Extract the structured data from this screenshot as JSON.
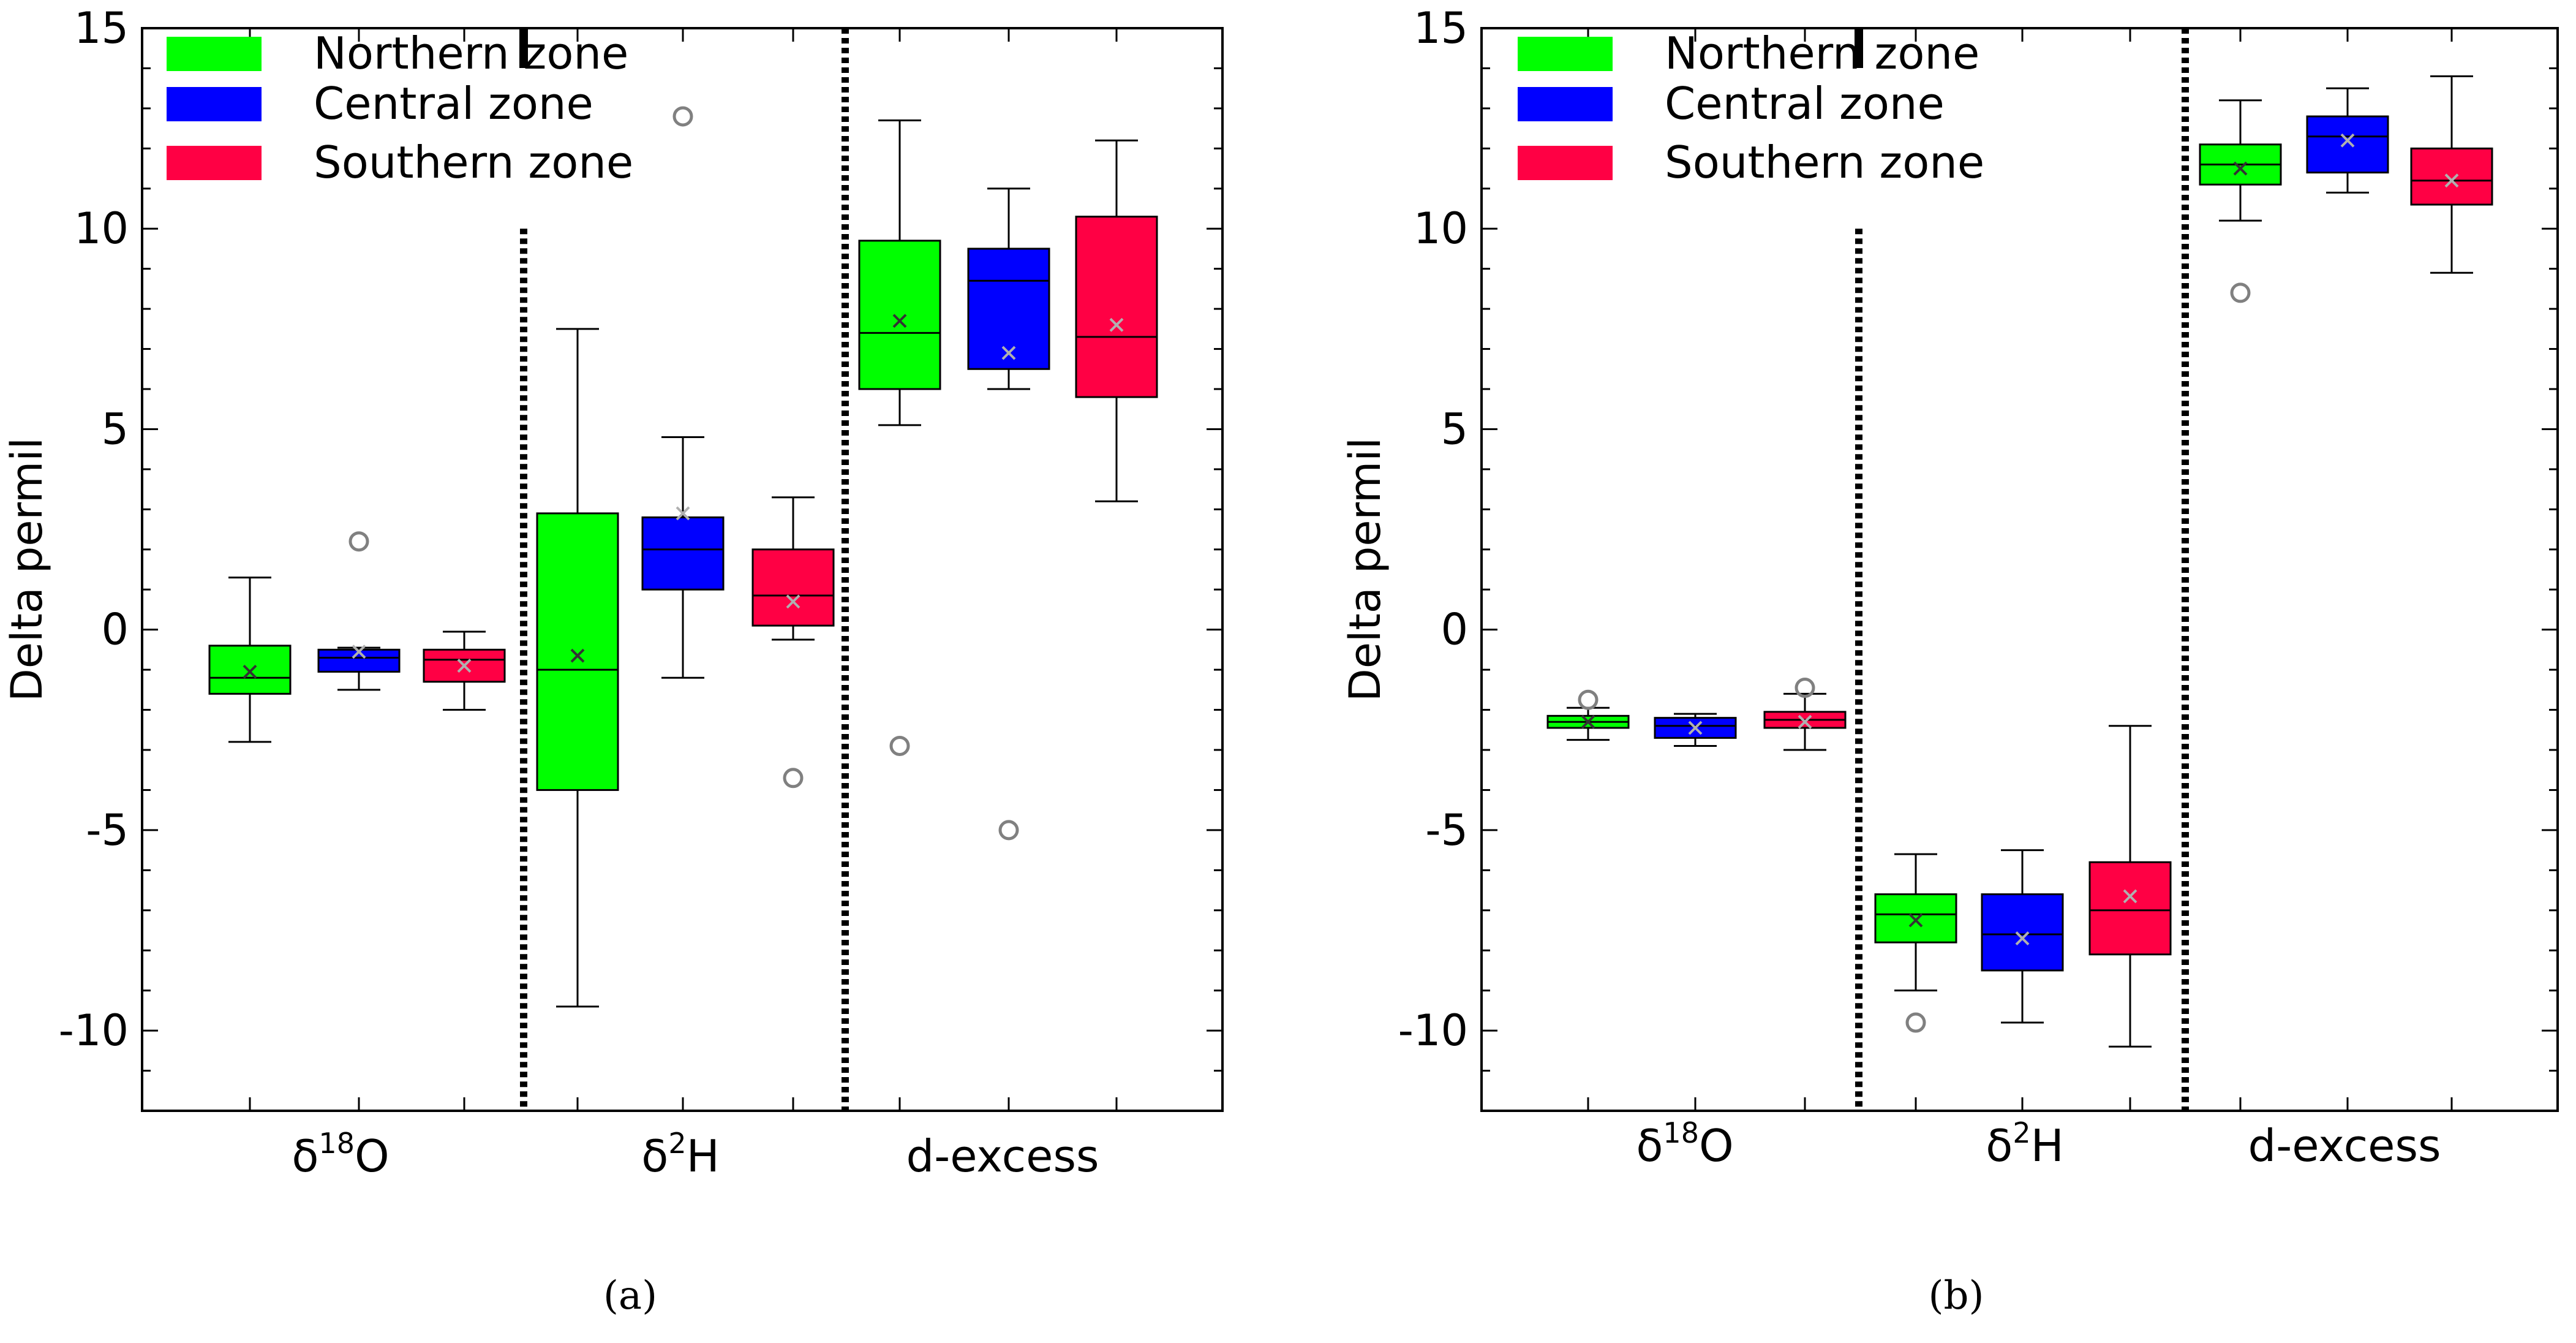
{
  "colors": {
    "northern": "#00ff00",
    "central": "#0000ff",
    "southern": "#ff0044",
    "outlier": "#808080",
    "mean_marker": "#808080"
  },
  "chart_data": [
    {
      "type": "box",
      "panel_label": "(a)",
      "ylabel": "Delta permil",
      "ylim": [
        -12,
        15
      ],
      "yticks": [
        "15",
        "10",
        "5",
        "0",
        "-5",
        "-10"
      ],
      "ytick_values": [
        15,
        10,
        5,
        0,
        -5,
        -10
      ],
      "groups": [
        "δ18O",
        "δ2H",
        "d-excess"
      ],
      "group_labels": [
        {
          "base": "δ",
          "sup": "18",
          "tail": "O"
        },
        {
          "base": "δ",
          "sup": "2",
          "tail": "H"
        },
        {
          "base": "d-excess",
          "sup": "",
          "tail": ""
        }
      ],
      "legend": {
        "position": "top-left",
        "entries": [
          "Northern zone",
          "Central zone",
          "Southern zone"
        ]
      },
      "series": [
        {
          "name": "Northern zone",
          "boxes": [
            {
              "whislo": -2.8,
              "q1": -1.6,
              "med": -1.2,
              "q3": -0.4,
              "whishi": 1.3,
              "mean": -1.05,
              "fliers": []
            },
            {
              "whislo": -9.4,
              "q1": -4.0,
              "med": -1.0,
              "q3": 2.9,
              "whishi": 7.5,
              "mean": -0.65,
              "fliers": []
            },
            {
              "whislo": 5.1,
              "q1": 6.0,
              "med": 7.4,
              "q3": 9.7,
              "whishi": 12.7,
              "mean": 7.7,
              "fliers": [
                -2.9
              ]
            }
          ]
        },
        {
          "name": "Central zone",
          "boxes": [
            {
              "whislo": -1.5,
              "q1": -1.05,
              "med": -0.7,
              "q3": -0.5,
              "whishi": -0.45,
              "mean": -0.55,
              "fliers": [
                2.2
              ]
            },
            {
              "whislo": -1.2,
              "q1": 1.0,
              "med": 2.0,
              "q3": 2.8,
              "whishi": 4.8,
              "mean": 2.9,
              "fliers": [
                12.8
              ]
            },
            {
              "whislo": 6.0,
              "q1": 6.5,
              "med": 8.7,
              "q3": 9.5,
              "whishi": 11.0,
              "mean": 6.9,
              "fliers": [
                -5.0
              ]
            }
          ]
        },
        {
          "name": "Southern zone",
          "boxes": [
            {
              "whislo": -2.0,
              "q1": -1.3,
              "med": -0.75,
              "q3": -0.5,
              "whishi": -0.05,
              "mean": -0.9,
              "fliers": []
            },
            {
              "whislo": -0.25,
              "q1": 0.1,
              "med": 0.85,
              "q3": 2.0,
              "whishi": 3.3,
              "mean": 0.7,
              "fliers": [
                -3.7
              ]
            },
            {
              "whislo": 3.2,
              "q1": 5.8,
              "med": 7.3,
              "q3": 10.3,
              "whishi": 12.2,
              "mean": 7.6,
              "fliers": []
            }
          ]
        }
      ]
    },
    {
      "type": "box",
      "panel_label": "(b)",
      "ylabel": "Delta permil",
      "ylim": [
        -12,
        15
      ],
      "yticks": [
        "15",
        "10",
        "5",
        "0",
        "-5",
        "-10"
      ],
      "ytick_values": [
        15,
        10,
        5,
        0,
        -5,
        -10
      ],
      "groups": [
        "δ18O",
        "δ2H",
        "d-excess"
      ],
      "group_labels": [
        {
          "base": "δ",
          "sup": "18",
          "tail": "O"
        },
        {
          "base": "δ",
          "sup": "2",
          "tail": "H"
        },
        {
          "base": "d-excess",
          "sup": "",
          "tail": ""
        }
      ],
      "legend": {
        "position": "top-left",
        "entries": [
          "Northern zone",
          "Central zone",
          "Southern zone"
        ]
      },
      "series": [
        {
          "name": "Northern zone",
          "boxes": [
            {
              "whislo": -2.75,
              "q1": -2.45,
              "med": -2.3,
              "q3": -2.15,
              "whishi": -1.95,
              "mean": -2.3,
              "fliers": [
                -1.75
              ]
            },
            {
              "whislo": -9.0,
              "q1": -7.8,
              "med": -7.1,
              "q3": -6.6,
              "whishi": -5.6,
              "mean": -7.25,
              "fliers": [
                -9.8
              ]
            },
            {
              "whislo": 10.2,
              "q1": 11.1,
              "med": 11.6,
              "q3": 12.1,
              "whishi": 13.2,
              "mean": 11.5,
              "fliers": [
                8.4
              ]
            }
          ]
        },
        {
          "name": "Central zone",
          "boxes": [
            {
              "whislo": -2.9,
              "q1": -2.7,
              "med": -2.4,
              "q3": -2.2,
              "whishi": -2.1,
              "mean": -2.45,
              "fliers": []
            },
            {
              "whislo": -9.8,
              "q1": -8.5,
              "med": -7.6,
              "q3": -6.6,
              "whishi": -5.5,
              "mean": -7.7,
              "fliers": []
            },
            {
              "whislo": 10.9,
              "q1": 11.4,
              "med": 12.3,
              "q3": 12.8,
              "whishi": 13.5,
              "mean": 12.2,
              "fliers": []
            }
          ]
        },
        {
          "name": "Southern zone",
          "boxes": [
            {
              "whislo": -3.0,
              "q1": -2.45,
              "med": -2.25,
              "q3": -2.05,
              "whishi": -1.6,
              "mean": -2.3,
              "fliers": [
                -1.45
              ]
            },
            {
              "whislo": -10.4,
              "q1": -8.1,
              "med": -7.0,
              "q3": -5.8,
              "whishi": -2.4,
              "mean": -6.65,
              "fliers": []
            },
            {
              "whislo": 8.9,
              "q1": 10.6,
              "med": 11.2,
              "q3": 12.0,
              "whishi": 13.8,
              "mean": 11.2,
              "fliers": []
            }
          ]
        }
      ]
    }
  ]
}
